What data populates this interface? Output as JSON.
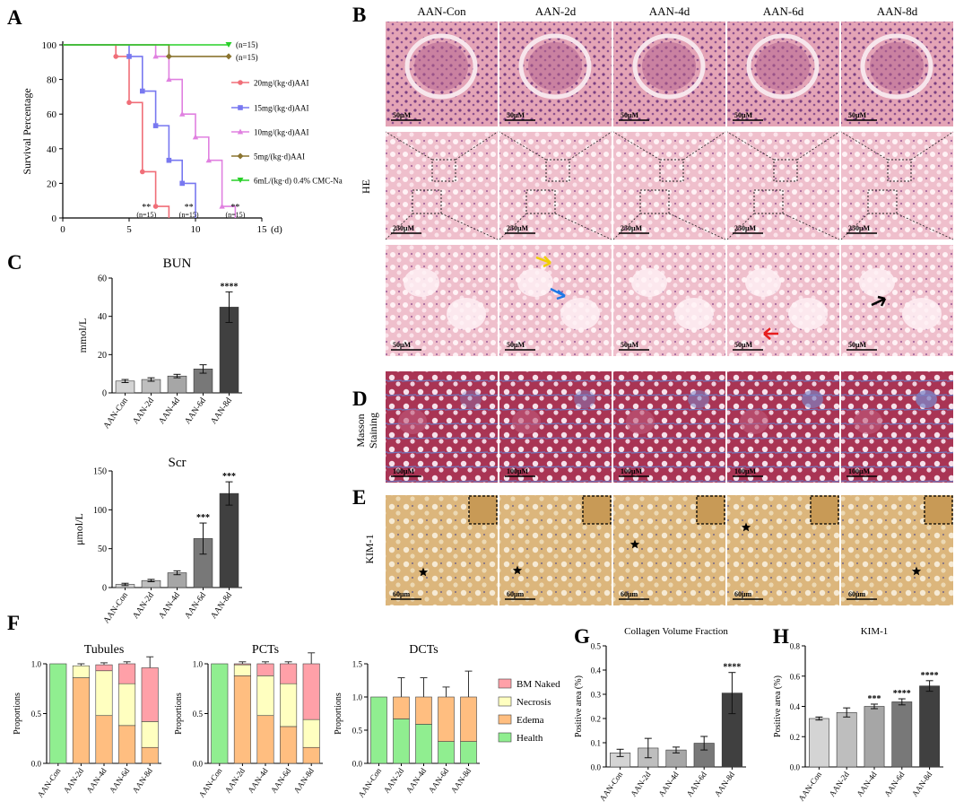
{
  "panels": {
    "A": "A",
    "B": "B",
    "C": "C",
    "D": "D",
    "E": "E",
    "F": "F",
    "G": "G",
    "H": "H"
  },
  "colors": {
    "he_pink": "#e7a7b8",
    "he_purple": "#8a4d8e",
    "masson_red": "#a62c4e",
    "masson_blue": "#5d67b0",
    "kim_tan": "#d9b47a",
    "bar_health": "#90ee90",
    "bar_edema": "#ffbe80",
    "bar_necrosis": "#ffffc0",
    "bar_bm": "#ffa0a8"
  },
  "histology": {
    "columns": [
      "AAN-Con",
      "AAN-2d",
      "AAN-4d",
      "AAN-6d",
      "AAN-8d"
    ],
    "row_labels": {
      "he": "HE",
      "masson_line1": "Masson",
      "masson_line2": "Staining",
      "kim": "KIM-1"
    },
    "he_row1_scale": [
      "50μM",
      "50μM",
      "50μM",
      "50μM",
      "50μM"
    ],
    "he_row2_scale": [
      "250μM",
      "250μM",
      "250μM",
      "250μM",
      "250μM"
    ],
    "he_row3_scale": [
      "50μM",
      "50μM",
      "50μM",
      "50μM",
      "50μM"
    ],
    "masson_scale": [
      "100μM",
      "100μM",
      "100μM",
      "100μM",
      "100μM"
    ],
    "kim_scale": [
      "60μm",
      "60μm",
      "60μm",
      "60μm",
      "60μm"
    ]
  },
  "chart_data": [
    {
      "id": "A",
      "type": "line",
      "xlabel": "(d)",
      "ylabel": "Survival Percentage",
      "xlim": [
        0,
        15
      ],
      "ylim": [
        0,
        100
      ],
      "xticks": [
        0,
        5,
        10,
        15
      ],
      "yticks": [
        0,
        20,
        40,
        60,
        80,
        100
      ],
      "series": [
        {
          "name": "20mg/(kg·d)AAI",
          "color": "#f06e78",
          "points": [
            [
              0,
              100
            ],
            [
              4,
              100
            ],
            [
              4,
              93.3
            ],
            [
              5,
              93.3
            ],
            [
              5,
              66.7
            ],
            [
              6,
              66.7
            ],
            [
              6,
              26.7
            ],
            [
              7,
              26.7
            ],
            [
              7,
              6.7
            ],
            [
              8,
              6.7
            ],
            [
              8,
              0
            ]
          ],
          "markers": [
            [
              4,
              93.3
            ],
            [
              5,
              66.7
            ],
            [
              6,
              26.7
            ],
            [
              7,
              6.7
            ]
          ]
        },
        {
          "name": "15mg/(kg·d)AAI",
          "color": "#7878f0",
          "points": [
            [
              0,
              100
            ],
            [
              5,
              100
            ],
            [
              5,
              93.3
            ],
            [
              6,
              93.3
            ],
            [
              6,
              73.3
            ],
            [
              7,
              73.3
            ],
            [
              7,
              53.3
            ],
            [
              8,
              53.3
            ],
            [
              8,
              33.3
            ],
            [
              9,
              33.3
            ],
            [
              9,
              20
            ],
            [
              10,
              20
            ],
            [
              10,
              0
            ]
          ],
          "markers": [
            [
              5,
              93.3
            ],
            [
              6,
              73.3
            ],
            [
              7,
              53.3
            ],
            [
              8,
              33.3
            ],
            [
              9,
              20
            ]
          ]
        },
        {
          "name": "10mg/(kg·d)AAI",
          "color": "#e080e0",
          "points": [
            [
              0,
              100
            ],
            [
              7,
              100
            ],
            [
              7,
              93.3
            ],
            [
              8,
              93.3
            ],
            [
              8,
              80
            ],
            [
              9,
              80
            ],
            [
              9,
              60
            ],
            [
              10,
              60
            ],
            [
              10,
              46.7
            ],
            [
              11,
              46.7
            ],
            [
              11,
              33.3
            ],
            [
              12,
              33.3
            ],
            [
              12,
              6.7
            ],
            [
              13,
              6.7
            ],
            [
              13,
              0
            ]
          ],
          "markers": [
            [
              7,
              93.3
            ],
            [
              8,
              80
            ],
            [
              9,
              60
            ],
            [
              10,
              46.7
            ],
            [
              11,
              33.3
            ],
            [
              12,
              6.7
            ]
          ]
        },
        {
          "name": "5mg/(kg·d)AAI",
          "color": "#8b7530",
          "points": [
            [
              0,
              100
            ],
            [
              8,
              100
            ],
            [
              8,
              93.3
            ],
            [
              12.5,
              93.3
            ]
          ],
          "markers": [
            [
              8,
              93.3
            ],
            [
              12.5,
              93.3
            ]
          ]
        },
        {
          "name": "6mL/(kg·d) 0.4% CMC-Na",
          "color": "#28d028",
          "points": [
            [
              0,
              100
            ],
            [
              12.5,
              100
            ]
          ],
          "markers": [
            [
              12.5,
              100
            ]
          ]
        }
      ],
      "end_labels": [
        "(n=15)",
        "(n=15)"
      ],
      "annotations": [
        {
          "sig": "**",
          "n": "(n=15)",
          "x": 6.3
        },
        {
          "sig": "**",
          "n": "(n=15)",
          "x": 9.5
        },
        {
          "sig": "**",
          "n": "(n=15)",
          "x": 13.0
        }
      ]
    },
    {
      "id": "C-BUN",
      "type": "bar",
      "title": "BUN",
      "ylabel": "mmol/L",
      "categories": [
        "AAN-Con",
        "AAN-2d",
        "AAN-4d",
        "AAN-6d",
        "AAN-8d"
      ],
      "values": [
        6.2,
        7.0,
        8.8,
        12.5,
        44.8
      ],
      "errors": [
        0.8,
        0.9,
        0.9,
        2.2,
        8.0
      ],
      "colors": [
        "#d4d4d4",
        "#bebebe",
        "#a6a6a6",
        "#787878",
        "#404040"
      ],
      "ylim": [
        0,
        60
      ],
      "yticks": [
        0,
        20,
        40,
        60
      ],
      "sig": [
        "",
        "",
        "",
        "",
        "****"
      ]
    },
    {
      "id": "C-Scr",
      "type": "bar",
      "title": "Scr",
      "ylabel": "μmol/L",
      "categories": [
        "AAN-Con",
        "AAN-2d",
        "AAN-4d",
        "AAN-6d",
        "AAN-8d"
      ],
      "values": [
        4,
        9,
        19,
        63,
        121
      ],
      "errors": [
        1.5,
        1.5,
        2.5,
        20,
        15
      ],
      "colors": [
        "#d4d4d4",
        "#bebebe",
        "#a6a6a6",
        "#787878",
        "#404040"
      ],
      "ylim": [
        0,
        150
      ],
      "yticks": [
        0,
        50,
        100,
        150
      ],
      "sig": [
        "",
        "",
        "",
        "***",
        "***"
      ]
    },
    {
      "id": "F-Tubules",
      "type": "bar",
      "stacked": true,
      "title": "Tubules",
      "ylabel": "Proportions",
      "categories": [
        "AAN-Con",
        "AAN-2d",
        "AAN-4d",
        "AAN-6d",
        "AAN-8d"
      ],
      "series": [
        {
          "name": "Health",
          "values": [
            1.0,
            0,
            0,
            0,
            0
          ]
        },
        {
          "name": "Edema",
          "values": [
            0,
            0.86,
            0.48,
            0.38,
            0.16
          ]
        },
        {
          "name": "Necrosis",
          "values": [
            0,
            0.12,
            0.45,
            0.42,
            0.26
          ]
        },
        {
          "name": "BM Naked",
          "values": [
            0,
            0,
            0.06,
            0.2,
            0.54
          ]
        }
      ],
      "errors_top": [
        0,
        0.02,
        0.02,
        0.02,
        0.11
      ],
      "ylim": [
        0,
        1
      ],
      "yticks": [
        0.0,
        0.5,
        1.0
      ],
      "ytick_labels": [
        "0.0",
        "0.5",
        "1.0"
      ]
    },
    {
      "id": "F-PCTs",
      "type": "bar",
      "stacked": true,
      "title": "PCTs",
      "ylabel": "Proportions",
      "categories": [
        "AAN-Con",
        "AAN-2d",
        "AAN-4d",
        "AAN-6d",
        "AAN-8d"
      ],
      "series": [
        {
          "name": "Health",
          "values": [
            1.0,
            0,
            0,
            0,
            0
          ]
        },
        {
          "name": "Edema",
          "values": [
            0,
            0.88,
            0.48,
            0.37,
            0.16
          ]
        },
        {
          "name": "Necrosis",
          "values": [
            0,
            0.11,
            0.4,
            0.43,
            0.28
          ]
        },
        {
          "name": "BM Naked",
          "values": [
            0,
            0.01,
            0.12,
            0.2,
            0.56
          ]
        }
      ],
      "errors_top": [
        0,
        0.02,
        0.02,
        0.02,
        0.11
      ],
      "ylim": [
        0,
        1
      ],
      "yticks": [
        0.0,
        0.5,
        1.0
      ],
      "ytick_labels": [
        "0.0",
        "0.5",
        "1.0"
      ]
    },
    {
      "id": "F-DCTs",
      "type": "bar",
      "stacked": true,
      "title": "DCTs",
      "ylabel": "Proportions",
      "categories": [
        "AAN-Con",
        "AAN-2d",
        "AAN-4d",
        "AAN-6d",
        "AAN-8d"
      ],
      "series": [
        {
          "name": "Health",
          "values": [
            1.0,
            0.67,
            0.59,
            0.33,
            0.33
          ]
        },
        {
          "name": "Edema",
          "values": [
            0,
            0.33,
            0.41,
            0.67,
            0.67
          ]
        },
        {
          "name": "Necrosis",
          "values": [
            0,
            0,
            0,
            0,
            0
          ]
        },
        {
          "name": "BM Naked",
          "values": [
            0,
            0,
            0,
            0,
            0
          ]
        }
      ],
      "errors_top": [
        0,
        0.29,
        0.29,
        0.15,
        0.39
      ],
      "ylim": [
        0,
        1.5
      ],
      "yticks": [
        0.0,
        0.5,
        1.0,
        1.5
      ],
      "ytick_labels": [
        "0.0",
        "0.5",
        "1.0",
        "1.5"
      ]
    },
    {
      "id": "G",
      "type": "bar",
      "title": "Collagen Volume Fraction",
      "ylabel": "Positive area (%)",
      "categories": [
        "AAN-Con",
        "AAN-2d",
        "AAN-4d",
        "AAN-6d",
        "AAN-8d"
      ],
      "values": [
        0.058,
        0.078,
        0.07,
        0.098,
        0.305
      ],
      "errors": [
        0.015,
        0.04,
        0.012,
        0.028,
        0.085
      ],
      "colors": [
        "#d4d4d4",
        "#bebebe",
        "#a6a6a6",
        "#787878",
        "#404040"
      ],
      "ylim": [
        0,
        0.5
      ],
      "yticks": [
        0.0,
        0.1,
        0.2,
        0.3,
        0.4,
        0.5
      ],
      "ytick_labels": [
        "0.0",
        "0.1",
        "0.2",
        "0.3",
        "0.4",
        "0.5"
      ],
      "sig": [
        "",
        "",
        "",
        "",
        "****"
      ]
    },
    {
      "id": "H",
      "type": "bar",
      "title": "KIM-1",
      "ylabel": "Positive area (%)",
      "categories": [
        "AAN-Con",
        "AAN-2d",
        "AAN-4d",
        "AAN-6d",
        "AAN-8d"
      ],
      "values": [
        0.32,
        0.36,
        0.4,
        0.43,
        0.535
      ],
      "errors": [
        0.01,
        0.03,
        0.015,
        0.02,
        0.035
      ],
      "colors": [
        "#d4d4d4",
        "#bebebe",
        "#a6a6a6",
        "#787878",
        "#404040"
      ],
      "ylim": [
        0,
        0.8
      ],
      "yticks": [
        0.0,
        0.2,
        0.4,
        0.6,
        0.8
      ],
      "ytick_labels": [
        "0.0",
        "0.2",
        "0.4",
        "0.6",
        "0.8"
      ],
      "sig": [
        "",
        "",
        "***",
        "****",
        "****"
      ]
    }
  ],
  "legend_F": [
    {
      "name": "BM Naked",
      "color": "#ffa0a8"
    },
    {
      "name": "Necrosis",
      "color": "#ffffc0"
    },
    {
      "name": "Edema",
      "color": "#ffbe80"
    },
    {
      "name": "Health",
      "color": "#90ee90"
    }
  ]
}
